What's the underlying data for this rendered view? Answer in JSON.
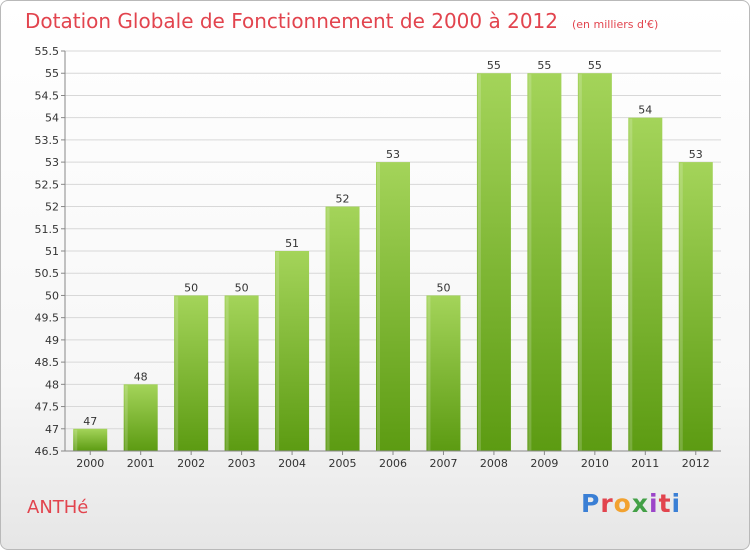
{
  "title": "Dotation Globale de Fonctionnement de 2000 à 2012",
  "unit_note": "(en milliers d'€)",
  "commune": "ANTHé",
  "logo": {
    "text": "Proxiti",
    "colors": [
      "#3a7fd5",
      "#e2444e",
      "#f2a230",
      "#43a047",
      "#9c45c9",
      "#e2444e",
      "#3a7fd5"
    ]
  },
  "colors": {
    "bar_top": "#a4d45a",
    "bar_bottom": "#5c9b12",
    "text": "#e2444e"
  },
  "chart_data": {
    "type": "bar",
    "categories": [
      "2000",
      "2001",
      "2002",
      "2003",
      "2004",
      "2005",
      "2006",
      "2007",
      "2008",
      "2009",
      "2010",
      "2011",
      "2012"
    ],
    "values": [
      47,
      48,
      50,
      50,
      51,
      52,
      53,
      50,
      55,
      55,
      55,
      54,
      53
    ],
    "data_labels": [
      "47",
      "48",
      "50",
      "50",
      "51",
      "52",
      "53",
      "50",
      "55",
      "55",
      "55",
      "54",
      "53"
    ],
    "ylim": [
      46.5,
      55.5
    ],
    "yticks": [
      "46.5",
      "47",
      "47.5",
      "48",
      "48.5",
      "49",
      "49.5",
      "50",
      "50.5",
      "51",
      "51.5",
      "52",
      "52.5",
      "53",
      "53.5",
      "54",
      "54.5",
      "55",
      "55.5"
    ],
    "grid": true,
    "title": "Dotation Globale de Fonctionnement de 2000 à 2012",
    "xlabel": "",
    "ylabel": ""
  }
}
